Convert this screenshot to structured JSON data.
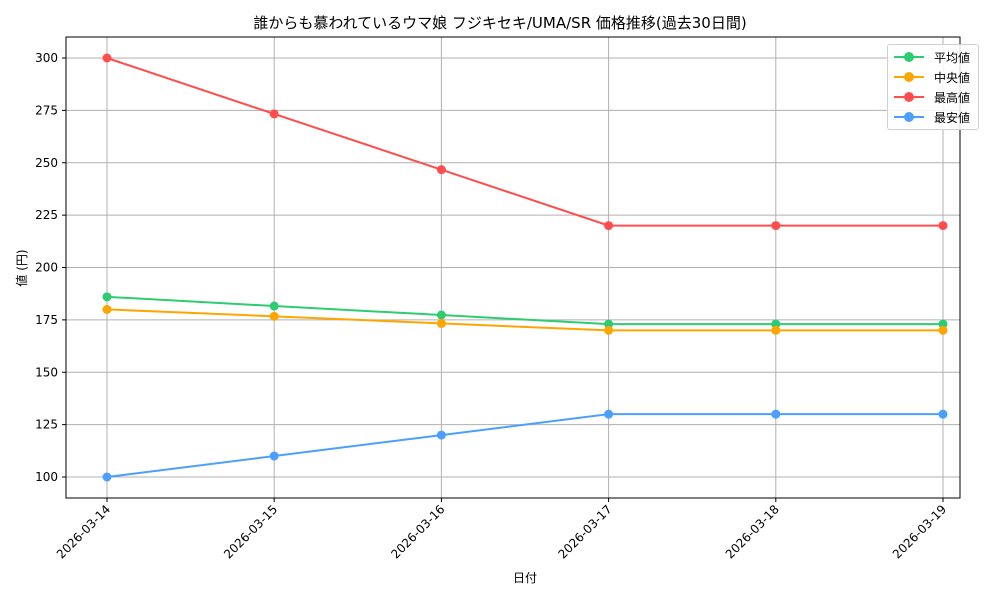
{
  "chart_data": {
    "type": "line",
    "title": "誰からも慕われているウマ娘 フジキセキ/UMA/SR 価格推移(過去30日間)",
    "xlabel": "日付",
    "ylabel": "値 (円)",
    "categories": [
      "2026-03-14",
      "2026-03-15",
      "2026-03-16",
      "2026-03-17",
      "2026-03-18",
      "2026-03-19"
    ],
    "series": [
      {
        "name": "平均値",
        "color": "#2ecc71",
        "values": [
          186,
          181.6,
          177.3,
          173,
          173,
          173
        ]
      },
      {
        "name": "中央値",
        "color": "#ffa500",
        "values": [
          180,
          176.7,
          173.3,
          170,
          170,
          170
        ]
      },
      {
        "name": "最高値",
        "color": "#ff4d4d",
        "values": [
          300,
          273.3,
          246.7,
          220,
          220,
          220
        ]
      },
      {
        "name": "最安値",
        "color": "#4d9fff",
        "values": [
          100,
          110,
          120,
          130,
          130,
          130
        ]
      }
    ],
    "yticks": [
      100,
      125,
      150,
      175,
      200,
      225,
      250,
      275,
      300
    ],
    "ylim": [
      90,
      310
    ],
    "grid": true,
    "legend_position": "upper right"
  }
}
